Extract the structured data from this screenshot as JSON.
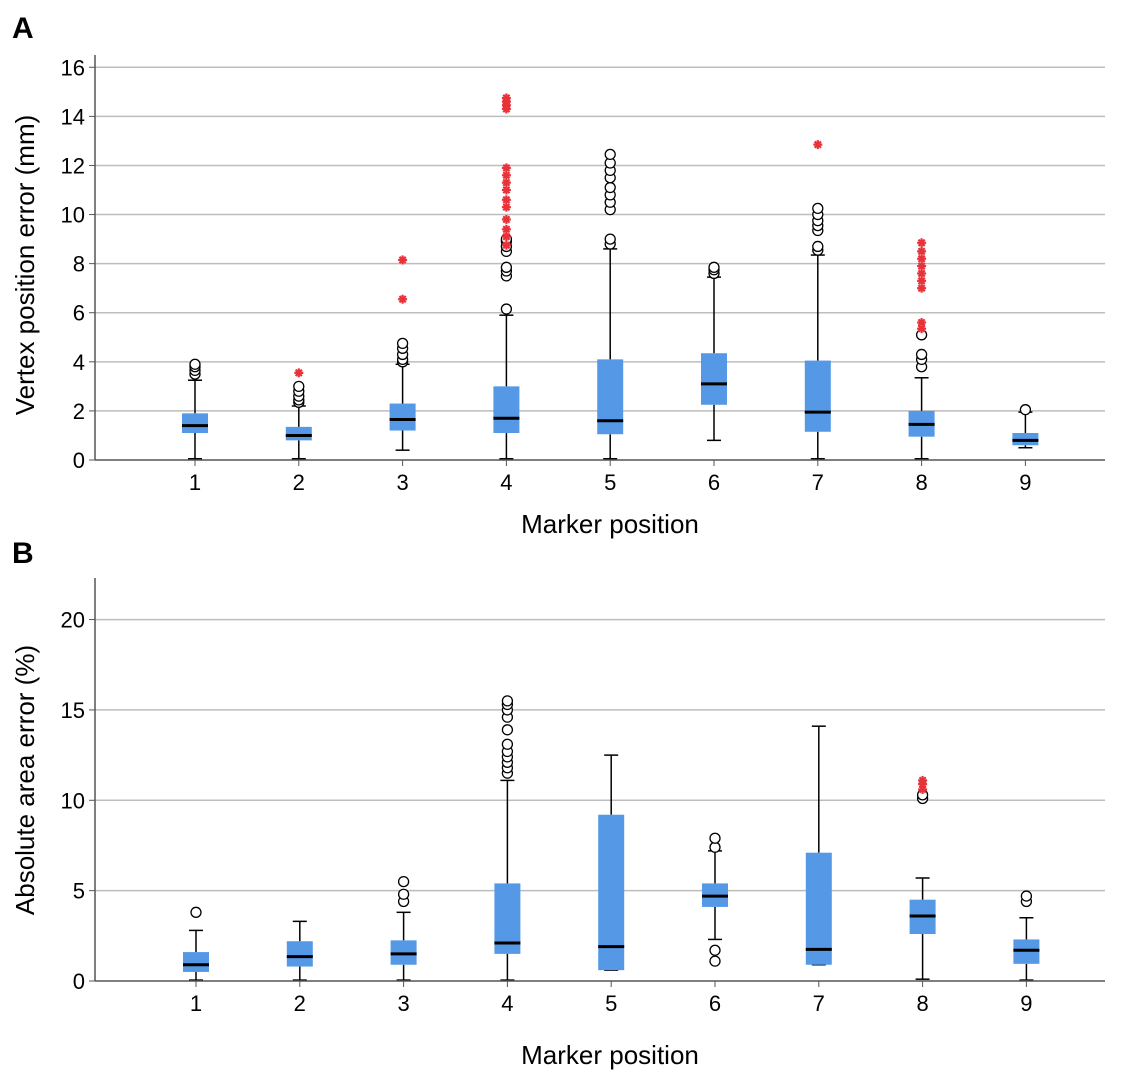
{
  "colors": {
    "box_fill": "#5599e6",
    "median": "#000000",
    "grid": "#bdbdbd",
    "axis": "#555555",
    "extreme_outlier": "#e8323a",
    "outlier_stroke": "#000000"
  },
  "chart_data": [
    {
      "panel": "A",
      "type": "box",
      "xlabel": "Marker position",
      "ylabel": "Vertex position error (mm)",
      "ylim": [
        0,
        16.5
      ],
      "yticks": [
        0,
        2,
        4,
        6,
        8,
        10,
        12,
        14,
        16
      ],
      "grid": true,
      "categories": [
        "1",
        "2",
        "3",
        "4",
        "5",
        "6",
        "7",
        "8",
        "9"
      ],
      "boxes": [
        {
          "category": "1",
          "min": 0.05,
          "q1": 1.1,
          "median": 1.4,
          "q3": 1.9,
          "max": 3.25,
          "outliers": [
            3.5,
            3.65,
            3.8,
            3.9
          ],
          "extremes": []
        },
        {
          "category": "2",
          "min": 0.05,
          "q1": 0.8,
          "median": 1.0,
          "q3": 1.35,
          "max": 2.2,
          "outliers": [
            2.35,
            2.45,
            2.6,
            2.8,
            3.0
          ],
          "extremes": [
            3.55
          ]
        },
        {
          "category": "3",
          "min": 0.4,
          "q1": 1.2,
          "median": 1.65,
          "q3": 2.3,
          "max": 3.9,
          "outliers": [
            4.0,
            4.1,
            4.3,
            4.55,
            4.75
          ],
          "extremes": [
            6.55,
            8.15
          ]
        },
        {
          "category": "4",
          "min": 0.05,
          "q1": 1.1,
          "median": 1.7,
          "q3": 3.0,
          "max": 5.9,
          "outliers": [
            6.15,
            7.5,
            7.7,
            7.85,
            8.5,
            8.7,
            8.9,
            9.0
          ],
          "extremes": [
            8.75,
            9.1,
            9.4,
            9.8,
            10.3,
            10.6,
            11.0,
            11.3,
            11.6,
            11.9,
            14.3,
            14.45,
            14.6,
            14.75
          ]
        },
        {
          "category": "5",
          "min": 0.05,
          "q1": 1.05,
          "median": 1.6,
          "q3": 4.1,
          "max": 8.6,
          "outliers": [
            8.8,
            9.0,
            10.2,
            10.5,
            10.8,
            11.1,
            11.5,
            11.8,
            12.1,
            12.45
          ],
          "extremes": []
        },
        {
          "category": "6",
          "min": 0.8,
          "q1": 2.25,
          "median": 3.1,
          "q3": 4.35,
          "max": 7.45,
          "outliers": [
            7.6,
            7.75,
            7.85
          ],
          "extremes": []
        },
        {
          "category": "7",
          "min": 0.05,
          "q1": 1.15,
          "median": 1.95,
          "q3": 4.05,
          "max": 8.35,
          "outliers": [
            8.55,
            8.7,
            9.35,
            9.55,
            9.75,
            10.0,
            10.25
          ],
          "extremes": [
            12.85
          ]
        },
        {
          "category": "8",
          "min": 0.05,
          "q1": 0.95,
          "median": 1.45,
          "q3": 2.0,
          "max": 3.35,
          "outliers": [
            3.8,
            4.1,
            4.3,
            5.1
          ],
          "extremes": [
            5.35,
            5.6,
            7.0,
            7.3,
            7.6,
            7.9,
            8.2,
            8.5,
            8.85
          ]
        },
        {
          "category": "9",
          "min": 0.5,
          "q1": 0.6,
          "median": 0.8,
          "q3": 1.1,
          "max": 1.95,
          "outliers": [
            2.05
          ],
          "extremes": []
        }
      ]
    },
    {
      "panel": "B",
      "type": "box",
      "xlabel": "Marker position",
      "ylabel": "Absolute area error (%)",
      "ylim": [
        0,
        22.3
      ],
      "yticks": [
        0,
        5,
        10,
        15,
        20
      ],
      "grid": true,
      "categories": [
        "1",
        "2",
        "3",
        "4",
        "5",
        "6",
        "7",
        "8",
        "9"
      ],
      "boxes": [
        {
          "category": "1",
          "min": 0.05,
          "q1": 0.5,
          "median": 0.9,
          "q3": 1.6,
          "max": 2.8,
          "outliers": [
            3.8
          ],
          "extremes": []
        },
        {
          "category": "2",
          "min": 0.05,
          "q1": 0.8,
          "median": 1.35,
          "q3": 2.2,
          "max": 3.3,
          "outliers": [],
          "extremes": []
        },
        {
          "category": "3",
          "min": 0.05,
          "q1": 0.9,
          "median": 1.5,
          "q3": 2.25,
          "max": 3.8,
          "outliers": [
            4.4,
            4.8,
            5.5
          ],
          "extremes": []
        },
        {
          "category": "4",
          "min": 0.05,
          "q1": 1.5,
          "median": 2.1,
          "q3": 5.4,
          "max": 11.1,
          "outliers": [
            11.5,
            11.8,
            12.1,
            12.4,
            12.7,
            13.1,
            13.9,
            14.6,
            15.0,
            15.3,
            15.5
          ],
          "extremes": []
        },
        {
          "category": "5",
          "min": 0.6,
          "q1": 0.6,
          "median": 1.9,
          "q3": 9.2,
          "max": 12.5,
          "outliers": [],
          "extremes": []
        },
        {
          "category": "6",
          "min": 2.3,
          "q1": 4.1,
          "median": 4.7,
          "q3": 5.4,
          "max": 7.2,
          "outliers": [
            1.1,
            1.7,
            7.4,
            7.9
          ],
          "extremes": []
        },
        {
          "category": "7",
          "min": 0.9,
          "q1": 0.9,
          "median": 1.75,
          "q3": 7.1,
          "max": 14.1,
          "outliers": [],
          "extremes": []
        },
        {
          "category": "8",
          "min": 0.1,
          "q1": 2.6,
          "median": 3.6,
          "q3": 4.5,
          "max": 5.7,
          "outliers": [
            10.1,
            10.3
          ],
          "extremes": [
            10.6,
            10.9,
            11.1
          ]
        },
        {
          "category": "9",
          "min": 0.05,
          "q1": 0.95,
          "median": 1.7,
          "q3": 2.3,
          "max": 3.5,
          "outliers": [
            4.4,
            4.7
          ],
          "extremes": []
        }
      ]
    }
  ]
}
